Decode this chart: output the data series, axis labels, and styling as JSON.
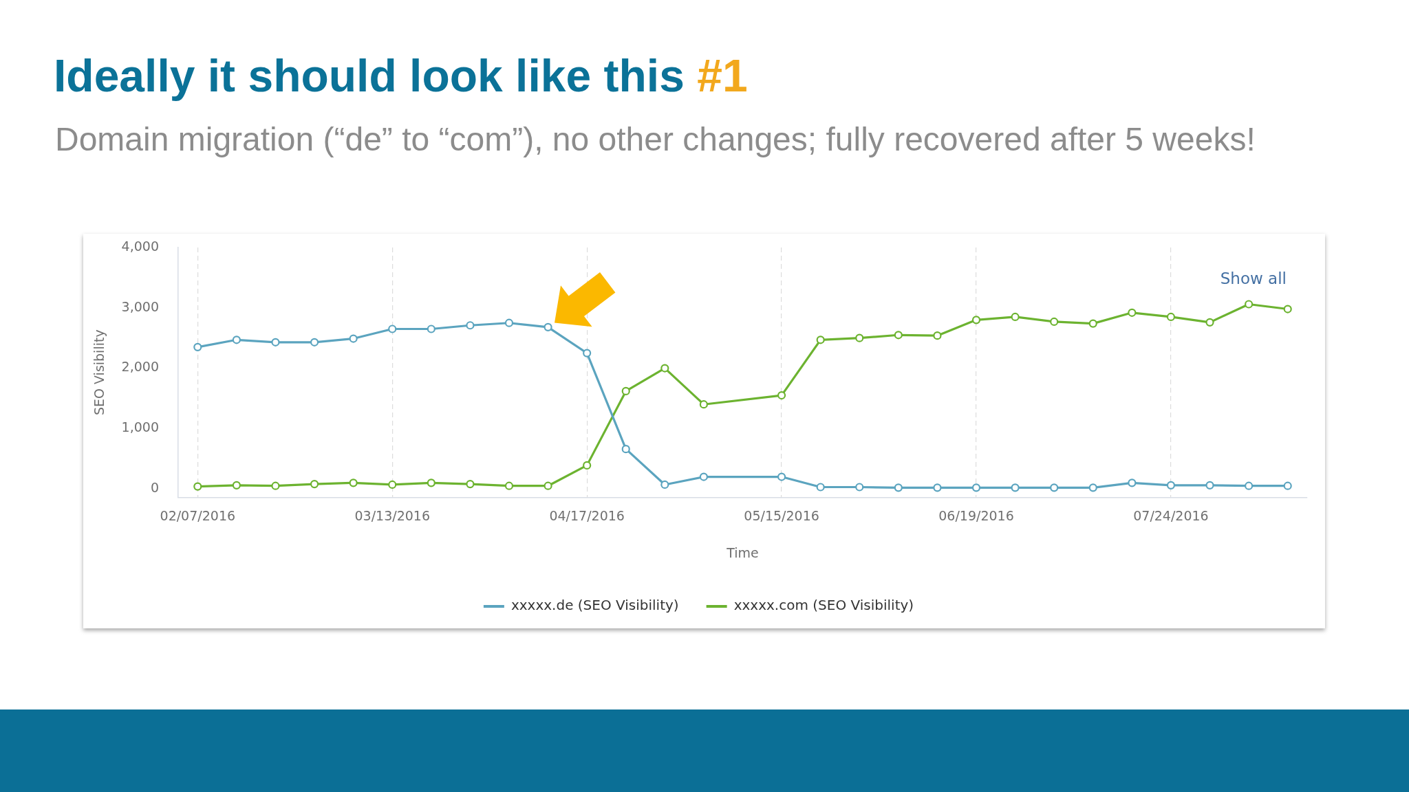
{
  "chart_data": {
    "type": "line",
    "title": "Ideally it should look like this #1",
    "subtitle": "Domain migration (“de” to “com”), no other changes; fully recovered after 5 weeks!",
    "xlabel": "Time",
    "ylabel": "SEO Visibility",
    "annotations": [
      "Show all"
    ],
    "categories": [
      "02/07/2016",
      null,
      null,
      null,
      null,
      "03/13/2016",
      null,
      null,
      null,
      null,
      "04/17/2016",
      null,
      null,
      null,
      null,
      "05/15/2016",
      null,
      null,
      null,
      null,
      "06/19/2016",
      null,
      null,
      null,
      null,
      "07/24/2016",
      null,
      null,
      null
    ],
    "series": [
      {
        "name": "xxxxx.de (SEO Visibility)",
        "color": "#5ba4bf",
        "values": [
          2350,
          2470,
          2430,
          2430,
          2490,
          2650,
          2650,
          2710,
          2750,
          2680,
          2250,
          660,
          70,
          200,
          null,
          200,
          30,
          30,
          20,
          20,
          20,
          20,
          20,
          20,
          100,
          60,
          60,
          50,
          50
        ]
      },
      {
        "name": "xxxxx.com (SEO Visibility)",
        "color": "#6cb330",
        "values": [
          40,
          60,
          50,
          80,
          100,
          70,
          100,
          80,
          50,
          50,
          390,
          1620,
          2000,
          1400,
          null,
          1550,
          2470,
          2500,
          2550,
          2540,
          2800,
          2850,
          2770,
          2740,
          2920,
          2850,
          2760,
          3060,
          2980
        ]
      }
    ],
    "ylim": [
      -140,
      4000
    ],
    "yticks": [
      {
        "value": 0,
        "label": "0"
      },
      {
        "value": 1000,
        "label": "1,000"
      },
      {
        "value": 2000,
        "label": "2,000"
      },
      {
        "value": 3000,
        "label": "3,000"
      },
      {
        "value": 4000,
        "label": "4,000"
      }
    ],
    "grid": "x",
    "legend": "bottom",
    "marker": "circle",
    "line_style": "solid"
  }
}
